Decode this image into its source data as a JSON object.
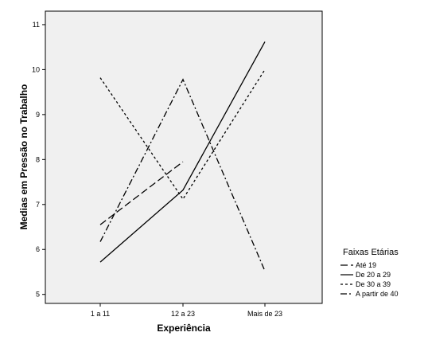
{
  "chart_data": {
    "type": "line",
    "xlabel": "Experiência",
    "ylabel": "Medias em Pressão no Trabalho",
    "categories": [
      "1 a 11",
      "12 a 23",
      "Mais de 23"
    ],
    "ylim": [
      4.8,
      11.3
    ],
    "yticks": [
      5,
      6,
      7,
      8,
      9,
      10,
      11
    ],
    "grid": false,
    "legend": {
      "title": "Faixas Etárias",
      "position": "right"
    },
    "series": [
      {
        "name": "Até 19",
        "values": [
          6.55,
          7.95,
          null
        ],
        "dash": "9,4"
      },
      {
        "name": "De 20 a 29",
        "values": [
          5.72,
          7.32,
          10.62
        ],
        "dash": ""
      },
      {
        "name": "De 30 a 39",
        "values": [
          9.82,
          7.12,
          10.0
        ],
        "dash": "3,3"
      },
      {
        "name": "A partir de 40",
        "values": [
          6.17,
          9.78,
          5.52
        ],
        "dash": "8,3,2,3"
      }
    ]
  }
}
